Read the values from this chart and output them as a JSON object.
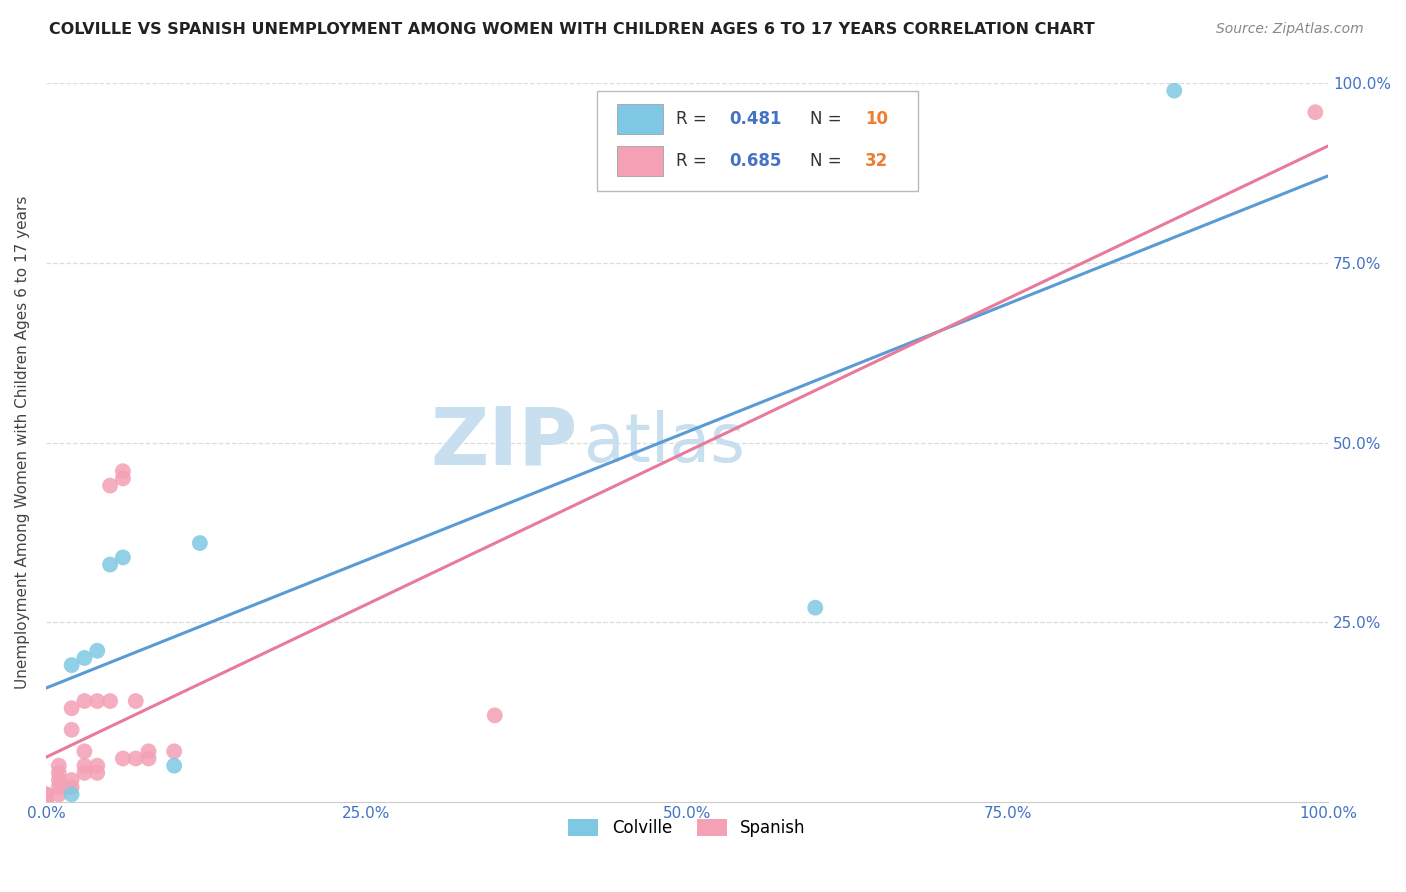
{
  "title": "COLVILLE VS SPANISH UNEMPLOYMENT AMONG WOMEN WITH CHILDREN AGES 6 TO 17 YEARS CORRELATION CHART",
  "source": "Source: ZipAtlas.com",
  "ylabel": "Unemployment Among Women with Children Ages 6 to 17 years",
  "xlim": [
    0,
    1
  ],
  "ylim": [
    0,
    1
  ],
  "xticks": [
    0,
    0.25,
    0.5,
    0.75,
    1.0
  ],
  "yticks": [
    0.25,
    0.5,
    0.75,
    1.0
  ],
  "xticklabels": [
    "0.0%",
    "25.0%",
    "50.0%",
    "75.0%",
    "100.0%"
  ],
  "yticklabels_right": [
    "25.0%",
    "50.0%",
    "75.0%",
    "100.0%"
  ],
  "colville_color": "#7ec8e3",
  "spanish_color": "#f4a0b5",
  "colville_line_color": "#5b9bd5",
  "spanish_line_color": "#e87a9a",
  "colville_R": 0.481,
  "colville_N": 10,
  "spanish_R": 0.685,
  "spanish_N": 32,
  "legend_R_color": "#4472c4",
  "legend_N_color": "#ed7d31",
  "watermark_zip": "ZIP",
  "watermark_atlas": "atlas",
  "watermark_color": "#c8dff0",
  "colville_x": [
    0.02,
    0.02,
    0.03,
    0.04,
    0.05,
    0.06,
    0.1,
    0.12,
    0.6,
    0.88
  ],
  "colville_y": [
    0.01,
    0.19,
    0.2,
    0.21,
    0.33,
    0.34,
    0.05,
    0.36,
    0.27,
    0.99
  ],
  "spanish_x": [
    0.0,
    0.0,
    0.0,
    0.0,
    0.01,
    0.01,
    0.01,
    0.01,
    0.01,
    0.02,
    0.02,
    0.02,
    0.02,
    0.03,
    0.03,
    0.03,
    0.03,
    0.04,
    0.04,
    0.04,
    0.05,
    0.05,
    0.06,
    0.06,
    0.06,
    0.07,
    0.07,
    0.08,
    0.08,
    0.1,
    0.35,
    0.99
  ],
  "spanish_y": [
    0.0,
    0.0,
    0.01,
    0.01,
    0.01,
    0.02,
    0.03,
    0.04,
    0.05,
    0.02,
    0.03,
    0.1,
    0.13,
    0.04,
    0.05,
    0.07,
    0.14,
    0.04,
    0.05,
    0.14,
    0.14,
    0.44,
    0.45,
    0.46,
    0.06,
    0.06,
    0.14,
    0.06,
    0.07,
    0.07,
    0.12,
    0.96
  ],
  "background_color": "#ffffff",
  "grid_color": "#dddddd",
  "tick_color": "#4472c4",
  "xlabel_color": "#4472c4"
}
